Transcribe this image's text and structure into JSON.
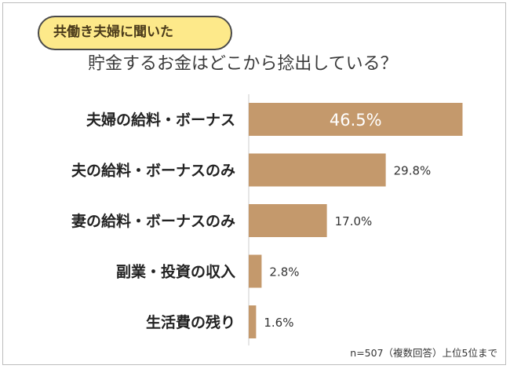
{
  "header": {
    "tag": "共働き夫婦に聞いた",
    "title": "貯金するお金はどこから捻出している？"
  },
  "chart_data": {
    "type": "bar",
    "orientation": "horizontal",
    "categories": [
      "夫婦の給料・ボーナス",
      "夫の給料・ボーナスのみ",
      "妻の給料・ボーナスのみ",
      "副業・投資の収入",
      "生活費の残り"
    ],
    "values": [
      46.5,
      29.8,
      17.0,
      2.8,
      1.6
    ],
    "data_labels": [
      "46.5%",
      "29.8%",
      "17.0%",
      "2.8%",
      "1.6%"
    ],
    "title": "貯金するお金はどこから捻出している？",
    "xlabel": "",
    "ylabel": "",
    "xlim": [
      0,
      50
    ],
    "grid": false,
    "legend": "none",
    "colors": {
      "bar": "#c4996c",
      "axis": "#cccccc",
      "label_inside": "#ffffff",
      "label_outside": "#333333"
    }
  },
  "footer": {
    "note": "n=507（複数回答）上位5位まで"
  }
}
